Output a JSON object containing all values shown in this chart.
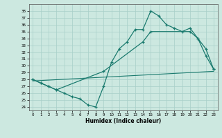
{
  "xlabel": "Humidex (Indice chaleur)",
  "bg_color": "#cce8e0",
  "line_color": "#1a7a6e",
  "xlim": [
    -0.5,
    23.5
  ],
  "ylim": [
    23.5,
    39.0
  ],
  "yticks": [
    24,
    25,
    26,
    27,
    28,
    29,
    30,
    31,
    32,
    33,
    34,
    35,
    36,
    37,
    38
  ],
  "xticks": [
    0,
    1,
    2,
    3,
    4,
    5,
    6,
    7,
    8,
    9,
    10,
    11,
    12,
    13,
    14,
    15,
    16,
    17,
    18,
    19,
    20,
    21,
    22,
    23
  ],
  "line1_x": [
    0,
    1,
    2,
    3,
    4,
    5,
    6,
    7,
    8,
    9,
    10,
    11,
    12,
    13,
    14,
    15,
    16,
    17,
    18,
    19,
    20,
    21,
    22,
    23
  ],
  "line1_y": [
    28.0,
    27.5,
    27.0,
    26.5,
    26.0,
    25.5,
    25.2,
    24.3,
    24.0,
    27.0,
    30.5,
    32.5,
    33.5,
    35.3,
    35.3,
    38.0,
    37.3,
    36.0,
    35.5,
    35.0,
    35.5,
    34.0,
    31.5,
    29.5
  ],
  "line2_x": [
    0,
    1,
    2,
    3,
    9,
    14,
    15,
    20,
    21,
    22,
    23
  ],
  "line2_y": [
    28.0,
    27.5,
    27.0,
    26.5,
    29.2,
    33.5,
    35.0,
    35.0,
    34.0,
    32.5,
    29.5
  ],
  "line3_x": [
    0,
    23
  ],
  "line3_y": [
    27.8,
    29.2
  ]
}
